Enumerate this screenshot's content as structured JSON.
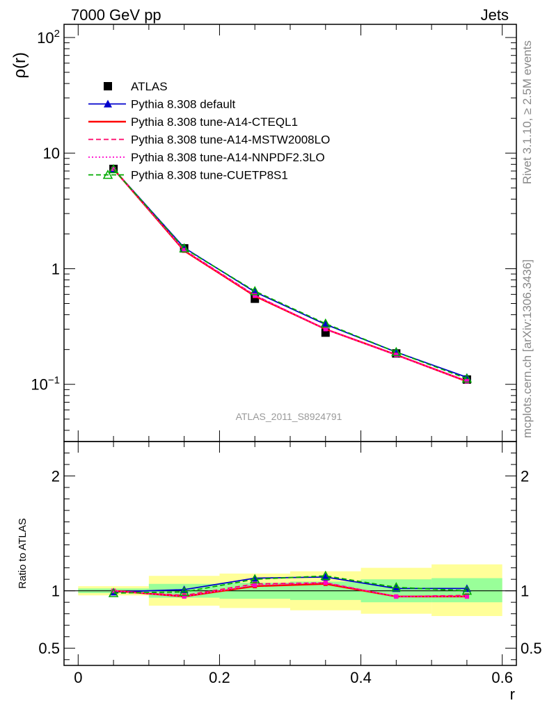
{
  "header": {
    "left": "7000 GeV pp",
    "right": "Jets"
  },
  "side_text": {
    "rivet": "Rivet 3.1.10, ≥ 2.5M events",
    "mcplots": "mcplots.cern.ch [arXiv:1306.3436]"
  },
  "analysis_id": "ATLAS_2011_S8924791",
  "chart_data": [
    {
      "type": "line",
      "ylabel": "ρ(r)",
      "yscale": "log",
      "ylim": [
        0.032,
        130
      ],
      "xlim": [
        -0.02,
        0.62
      ],
      "y_ticks": [
        {
          "value": 0.1,
          "base": "10",
          "exp": "−1"
        },
        {
          "value": 1,
          "label": "1"
        },
        {
          "value": 10,
          "label": "10"
        },
        {
          "value": 100,
          "base": "10",
          "exp": "2"
        }
      ],
      "x": [
        0.05,
        0.15,
        0.25,
        0.35,
        0.45,
        0.55
      ],
      "series": [
        {
          "name": "ATLAS",
          "color": "#000000",
          "style": "marker-square",
          "values": [
            7.3,
            1.5,
            0.55,
            0.28,
            0.185,
            0.11
          ]
        },
        {
          "name": "Pythia 8.308 default",
          "color": "#0000cc",
          "style": "solid-triangle",
          "values": [
            7.3,
            1.52,
            0.63,
            0.33,
            0.19,
            0.115
          ]
        },
        {
          "name": "Pythia 8.308 tune-A14-CTEQL1",
          "color": "#ff0000",
          "style": "solid",
          "values": [
            7.3,
            1.43,
            0.58,
            0.3,
            0.18,
            0.106
          ]
        },
        {
          "name": "Pythia 8.308 tune-A14-MSTW2008LO",
          "color": "#ff0066",
          "style": "dashed",
          "values": [
            7.3,
            1.45,
            0.59,
            0.3,
            0.18,
            0.107
          ]
        },
        {
          "name": "Pythia 8.308 tune-A14-NNPDF2.3LO",
          "color": "#ff00cc",
          "style": "dotted",
          "values": [
            7.3,
            1.44,
            0.585,
            0.3,
            0.179,
            0.106
          ]
        },
        {
          "name": "Pythia 8.308 tune-CUETP8S1",
          "color": "#00aa00",
          "style": "dashed-open-triangle",
          "values": [
            7.25,
            1.5,
            0.64,
            0.335,
            0.19,
            0.112
          ]
        }
      ]
    },
    {
      "type": "line",
      "ylabel": "Ratio to ATLAS",
      "xlabel": "r",
      "ylim": [
        0.35,
        2.3
      ],
      "xlim": [
        -0.02,
        0.62
      ],
      "y_ticks": [
        {
          "value": 0.5,
          "label": "0.5"
        },
        {
          "value": 1,
          "label": "1"
        },
        {
          "value": 2,
          "label": "2"
        }
      ],
      "x_ticks": [
        {
          "value": 0,
          "label": "0"
        },
        {
          "value": 0.2,
          "label": "0.2"
        },
        {
          "value": 0.4,
          "label": "0.4"
        },
        {
          "value": 0.6,
          "label": "0.6"
        }
      ],
      "bands": [
        {
          "x0": 0.0,
          "x1": 0.1,
          "stat": [
            0.98,
            1.02
          ],
          "total": [
            0.96,
            1.04
          ]
        },
        {
          "x0": 0.1,
          "x1": 0.2,
          "stat": [
            0.94,
            1.06
          ],
          "total": [
            0.87,
            1.13
          ]
        },
        {
          "x0": 0.2,
          "x1": 0.3,
          "stat": [
            0.93,
            1.07
          ],
          "total": [
            0.85,
            1.15
          ]
        },
        {
          "x0": 0.3,
          "x1": 0.4,
          "stat": [
            0.92,
            1.08
          ],
          "total": [
            0.83,
            1.17
          ]
        },
        {
          "x0": 0.4,
          "x1": 0.5,
          "stat": [
            0.9,
            1.1
          ],
          "total": [
            0.8,
            1.2
          ]
        },
        {
          "x0": 0.5,
          "x1": 0.6,
          "stat": [
            0.9,
            1.11
          ],
          "total": [
            0.78,
            1.23
          ]
        }
      ],
      "x": [
        0.05,
        0.15,
        0.25,
        0.35,
        0.45,
        0.55
      ],
      "series": [
        {
          "name": "Pythia 8.308 default",
          "color": "#0000cc",
          "style": "solid-triangle",
          "values": [
            0.99,
            1.01,
            1.11,
            1.12,
            1.02,
            1.02
          ]
        },
        {
          "name": "Pythia 8.308 tune-A14-CTEQL1",
          "color": "#ff0000",
          "style": "solid",
          "values": [
            1.0,
            0.95,
            1.04,
            1.06,
            0.95,
            0.95
          ]
        },
        {
          "name": "Pythia 8.308 tune-A14-MSTW2008LO",
          "color": "#ff0066",
          "style": "dashed",
          "values": [
            1.0,
            0.96,
            1.06,
            1.07,
            0.95,
            0.96
          ]
        },
        {
          "name": "Pythia 8.308 tune-A14-NNPDF2.3LO",
          "color": "#ff00cc",
          "style": "dotted",
          "values": [
            1.0,
            0.95,
            1.05,
            1.07,
            0.95,
            0.95
          ]
        },
        {
          "name": "Pythia 8.308 tune-CUETP8S1",
          "color": "#00aa00",
          "style": "dashed-open-triangle",
          "values": [
            0.98,
            0.99,
            1.1,
            1.13,
            1.03,
            1.0
          ]
        }
      ]
    }
  ]
}
